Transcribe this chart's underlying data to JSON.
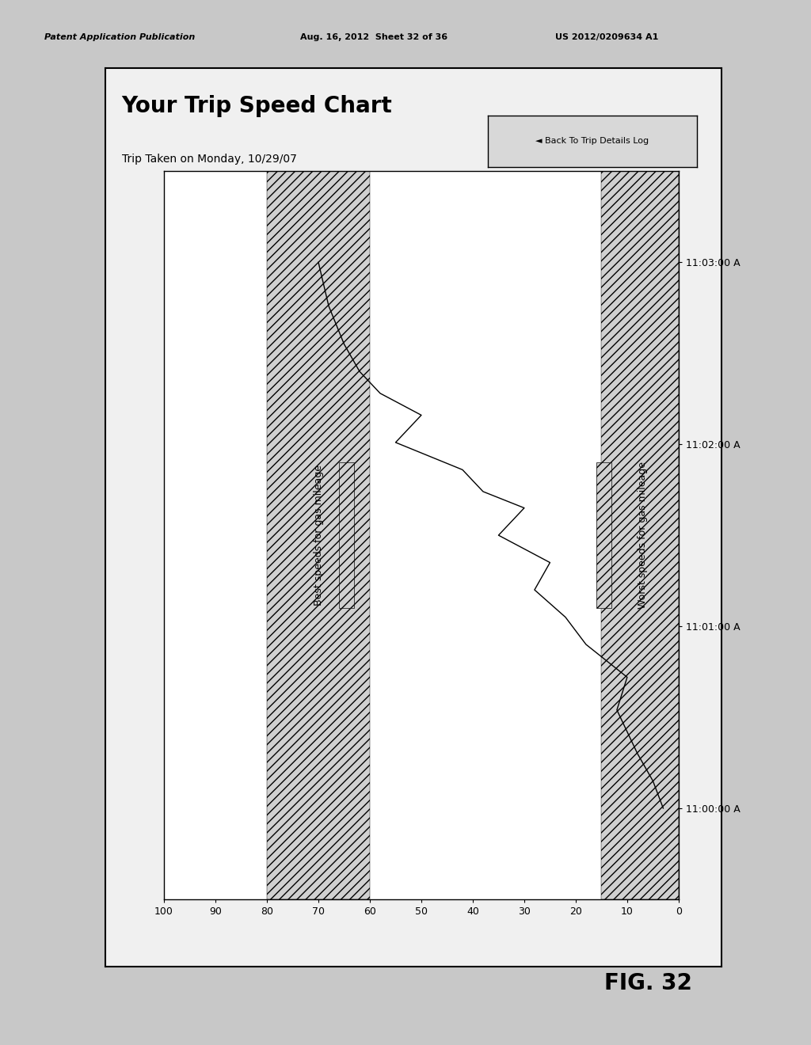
{
  "title": "Your Trip Speed Chart",
  "subtitle": "Trip Taken on Monday, 10/29/07",
  "button_label": "◄ Back To Trip Details Log",
  "fig_label": "FIG. 32",
  "legend_best": "Best speeds for gas mileage",
  "legend_worst": "Worst speeds for gas mileage",
  "speed_min": 0,
  "speed_max": 100,
  "speed_ticks": [
    0,
    10,
    20,
    30,
    40,
    50,
    60,
    70,
    80,
    90,
    100
  ],
  "x_times": [
    "11:00:00 A",
    "11:01:00 A",
    "11:02:00 A",
    "11:03:00 A"
  ],
  "best_band_low": 60,
  "best_band_high": 80,
  "worst_band_low": 0,
  "worst_band_high": 15,
  "speed_t": [
    0.0,
    0.05,
    0.1,
    0.18,
    0.24,
    0.3,
    0.35,
    0.4,
    0.45,
    0.5,
    0.55,
    0.58,
    0.62,
    0.67,
    0.72,
    0.76,
    0.8,
    0.85,
    0.92,
    1.0
  ],
  "speed_v": [
    3,
    5,
    8,
    12,
    10,
    18,
    22,
    28,
    25,
    35,
    30,
    38,
    42,
    55,
    50,
    58,
    62,
    65,
    68,
    70
  ],
  "outer_bg": "#f0f0f0",
  "chart_bg": "#ffffff",
  "page_bg": "#c8c8c8",
  "hatch_pattern": "///",
  "hatch_color": "#aaaaaa",
  "border_lw": 1.5,
  "line_color": "#000000",
  "title_fontsize": 20,
  "subtitle_fontsize": 10,
  "tick_fontsize": 9,
  "legend_fontsize": 9,
  "button_fontsize": 8,
  "header_fontsize": 8,
  "figlabel_fontsize": 20
}
